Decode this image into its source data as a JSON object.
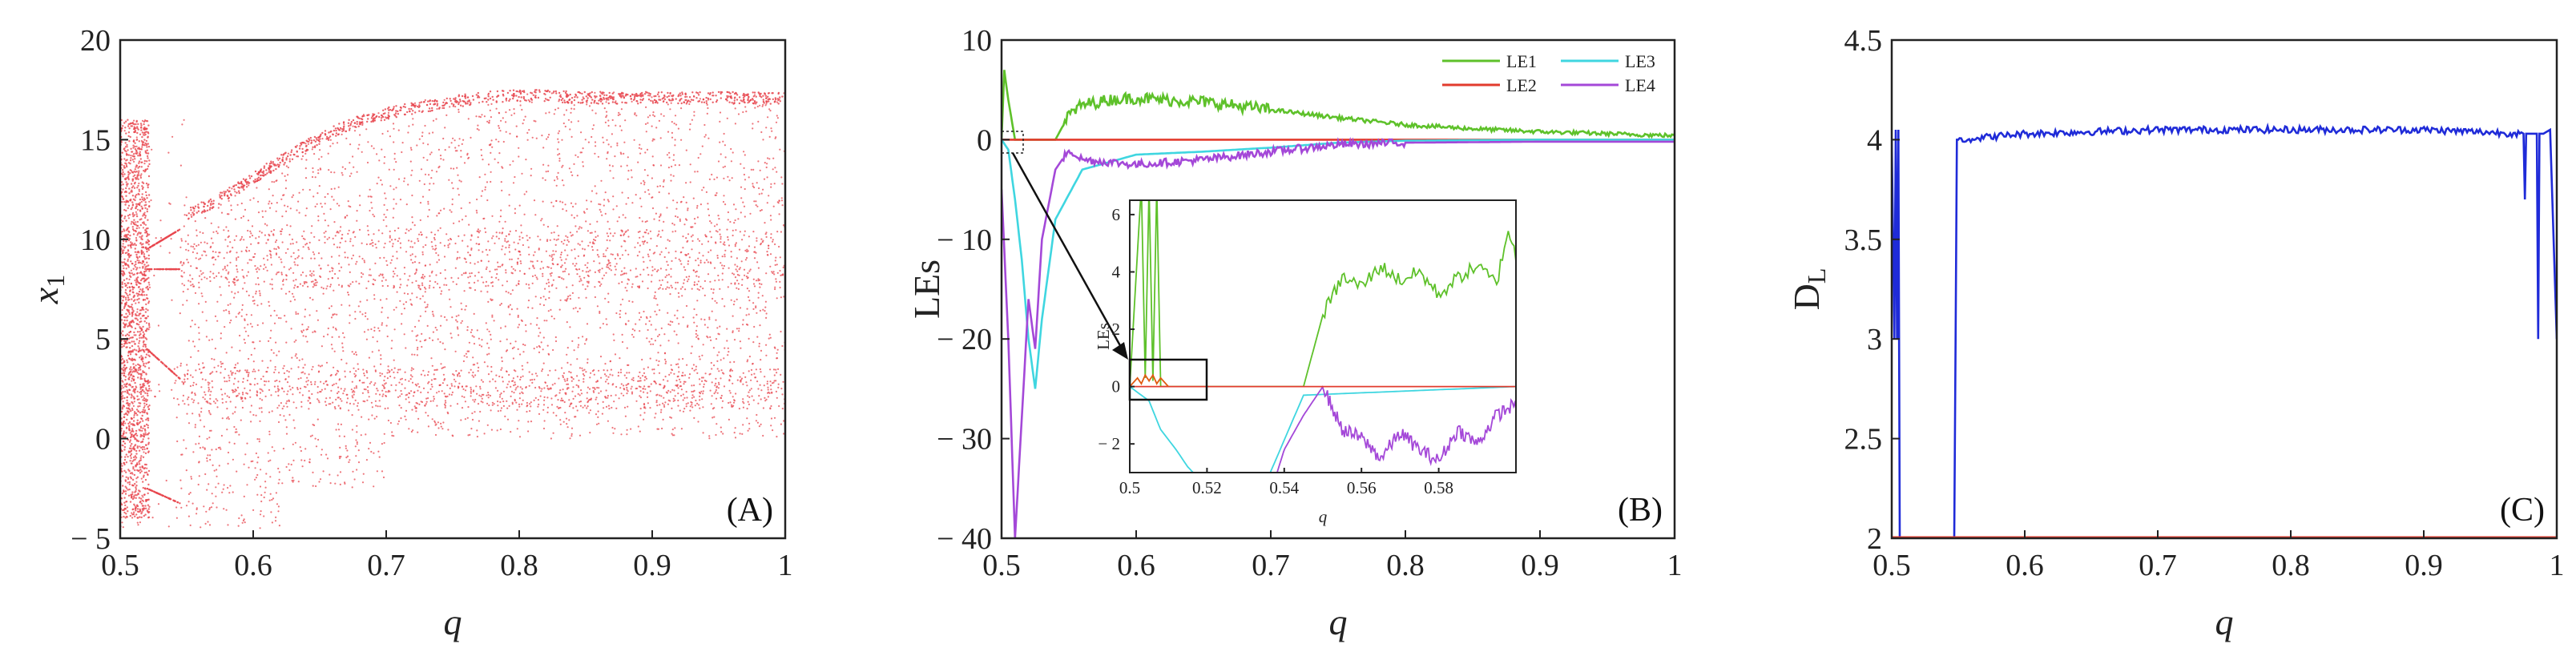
{
  "chart_data": [
    {
      "id": "A",
      "type": "scatter",
      "panel_label": "(A)",
      "xlabel": "q",
      "ylabel": "x",
      "ylabel_sub": "1",
      "xlim": [
        0.5,
        1
      ],
      "ylim": [
        -5,
        20
      ],
      "xticks": [
        0.5,
        0.6,
        0.7,
        0.8,
        0.9,
        1
      ],
      "xtick_labels": [
        "0.5",
        "0.6",
        "0.7",
        "0.8",
        "0.9",
        "1"
      ],
      "yticks": [
        -5,
        0,
        5,
        10,
        15,
        20
      ],
      "ytick_labels": [
        "-5",
        "0",
        "5",
        "10",
        "15",
        "20"
      ],
      "color": "#e8474f",
      "series": [
        {
          "name": "upper branch",
          "x": [
            0.55,
            0.58,
            0.61,
            0.64,
            0.67,
            0.7,
            0.73,
            0.76,
            0.79,
            0.82,
            0.85,
            0.9,
            0.95,
            1.0
          ],
          "y": [
            11.5,
            12.5,
            13.8,
            15.0,
            16.0,
            16.6,
            17.0,
            17.3,
            17.5,
            17.5,
            17.4,
            17.4,
            17.4,
            17.4
          ]
        },
        {
          "name": "periodic band",
          "x": [
            0.52,
            0.53,
            0.54,
            0.545
          ],
          "y": [
            10.5,
            11.0,
            11.5,
            12.0
          ]
        },
        {
          "name": "chaotic cloud",
          "x_range": [
            0.5,
            1.0
          ],
          "y_range": [
            -4.5,
            17.5
          ]
        }
      ]
    },
    {
      "id": "B",
      "type": "line",
      "panel_label": "(B)",
      "xlabel": "q",
      "ylabel": "LEs",
      "xlim": [
        0.5,
        1
      ],
      "ylim": [
        -40,
        10
      ],
      "xticks": [
        0.5,
        0.6,
        0.7,
        0.8,
        0.9,
        1
      ],
      "xtick_labels": [
        "0.5",
        "0.6",
        "0.7",
        "0.8",
        "0.9",
        "1"
      ],
      "yticks": [
        -40,
        -30,
        -20,
        -10,
        0,
        10
      ],
      "ytick_labels": [
        "-40",
        "-30",
        "-20",
        "-10",
        "0",
        "10"
      ],
      "legend": [
        "LE1",
        "LE2",
        "LE3",
        "LE4"
      ],
      "series": [
        {
          "name": "LE1",
          "color": "#5ec12a",
          "x": [
            0.5,
            0.502,
            0.505,
            0.51,
            0.52,
            0.54,
            0.55,
            0.56,
            0.58,
            0.6,
            0.62,
            0.65,
            0.7,
            0.75,
            0.8,
            0.85,
            0.9,
            0.95,
            1.0
          ],
          "y": [
            0,
            7,
            4,
            0,
            0,
            0,
            2.5,
            3.5,
            4.0,
            4.2,
            4.0,
            3.8,
            3.0,
            2.2,
            1.5,
            1.1,
            0.8,
            0.6,
            0.4
          ]
        },
        {
          "name": "LE2",
          "color": "#e23b2d",
          "x": [
            0.5,
            1.0
          ],
          "y": [
            0,
            0
          ]
        },
        {
          "name": "LE3",
          "color": "#3fd6e0",
          "x": [
            0.5,
            0.505,
            0.51,
            0.515,
            0.52,
            0.525,
            0.53,
            0.54,
            0.56,
            0.6,
            0.65,
            0.7,
            0.75,
            0.8,
            0.9,
            1.0
          ],
          "y": [
            0,
            -1,
            -6,
            -12,
            -20,
            -25,
            -18,
            -8,
            -3,
            -1.5,
            -1.2,
            -0.8,
            -0.3,
            -0.1,
            0,
            0
          ]
        },
        {
          "name": "LE4",
          "color": "#a448d8",
          "x": [
            0.5,
            0.505,
            0.51,
            0.52,
            0.525,
            0.53,
            0.54,
            0.55,
            0.56,
            0.6,
            0.65,
            0.7,
            0.75,
            0.8,
            0.9,
            1.0
          ],
          "y": [
            -5,
            -20,
            -40,
            -16,
            -21,
            -10,
            -3,
            -1,
            -2,
            -2.5,
            -2,
            -1.2,
            -0.5,
            -0.3,
            -0.2,
            -0.2
          ]
        }
      ],
      "inset": {
        "xlim": [
          0.5,
          0.6
        ],
        "ylim": [
          -3,
          6.5
        ],
        "xticks": [
          0.5,
          0.52,
          0.54,
          0.56,
          0.58
        ],
        "xtick_labels": [
          "0.5",
          "0.52",
          "0.54",
          "0.56",
          "0.58"
        ],
        "yticks": [
          -2,
          0,
          2,
          4,
          6
        ],
        "ytick_labels": [
          "-2",
          "0",
          "2",
          "4",
          "6"
        ],
        "xlabel": "q",
        "ylabel": "LEs"
      }
    },
    {
      "id": "C",
      "type": "line",
      "panel_label": "(C)",
      "xlabel": "q",
      "ylabel": "D",
      "ylabel_sub": "L",
      "xlim": [
        0.5,
        1
      ],
      "ylim": [
        2,
        4.5
      ],
      "xticks": [
        0.5,
        0.6,
        0.7,
        0.8,
        0.9,
        1
      ],
      "xtick_labels": [
        "0.5",
        "0.6",
        "0.7",
        "0.8",
        "0.9",
        "1"
      ],
      "yticks": [
        2,
        2.5,
        3,
        3.5,
        4,
        4.5
      ],
      "ytick_labels": [
        "2",
        "2.5",
        "3",
        "3.5",
        "4",
        "4.5"
      ],
      "series": [
        {
          "name": "D_L",
          "color": "#1f2bd8",
          "x": [
            0.5,
            0.502,
            0.503,
            0.504,
            0.505,
            0.506,
            0.508,
            0.51,
            0.547,
            0.548,
            0.549,
            0.55,
            0.6,
            0.7,
            0.8,
            0.9,
            0.975,
            0.976,
            0.977,
            0.98,
            0.985,
            0.986,
            0.987,
            0.99,
            0.995,
            1.0
          ],
          "y": [
            4.0,
            3.0,
            4.05,
            3.0,
            4.05,
            2.0,
            2.0,
            2.0,
            2.0,
            3.0,
            4.0,
            4.0,
            4.03,
            4.05,
            4.05,
            4.05,
            4.03,
            3.7,
            4.03,
            4.03,
            4.03,
            3.0,
            4.03,
            4.03,
            4.05,
            3.0
          ]
        },
        {
          "name": "baseline",
          "color": "#e23b2d",
          "x": [
            0.5,
            1.0
          ],
          "y": [
            2,
            2
          ]
        }
      ]
    }
  ]
}
